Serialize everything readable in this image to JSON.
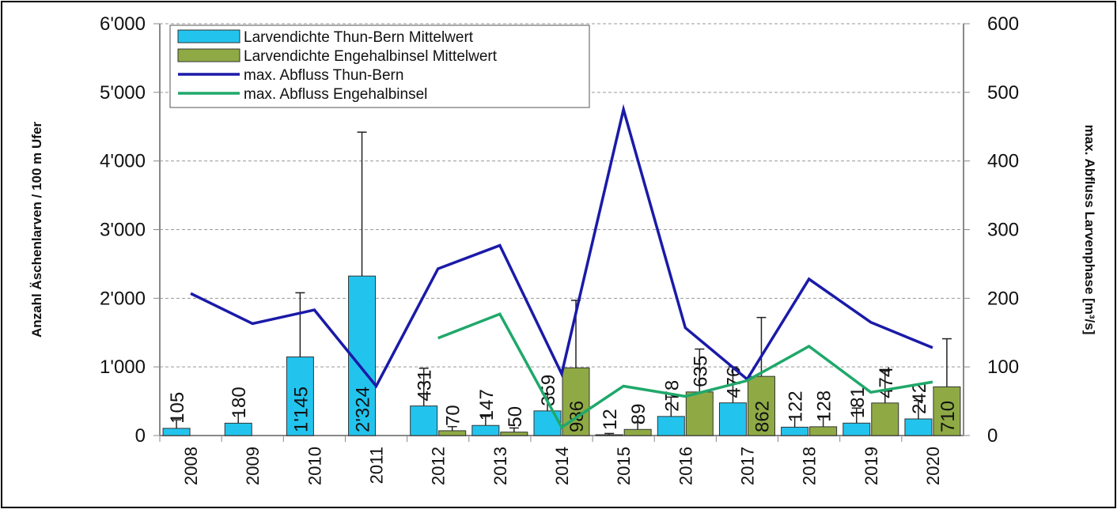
{
  "chart_data": {
    "type": "bar-line",
    "categories": [
      "2008",
      "2009",
      "2010",
      "2011",
      "2012",
      "2013",
      "2014",
      "2015",
      "2016",
      "2017",
      "2018",
      "2019",
      "2020"
    ],
    "ylabel": "Anzahl Äschenlarven / 100 m Ufer",
    "y2label": "max. Abfluss Larvenphase [m³/s]",
    "ylim": [
      0,
      6000
    ],
    "yticks": [
      0,
      {
        "value": 1000,
        "label": "1'000"
      },
      {
        "value": 2000,
        "label": "2'000"
      },
      {
        "value": 3000,
        "label": "3'000"
      },
      {
        "value": 4000,
        "label": "4'000"
      },
      {
        "value": 5000,
        "label": "5'000"
      },
      {
        "value": 6000,
        "label": "6'000"
      }
    ],
    "y2lim": [
      0,
      600
    ],
    "y2ticks": [
      0,
      100,
      200,
      300,
      400,
      500,
      600
    ],
    "grid": true,
    "legend": "upper left",
    "series": [
      {
        "name": "Larvendichte Thun-Bern Mittelwert",
        "type": "bar",
        "color": "#22c4ee",
        "values": [
          105,
          180,
          1145,
          2324,
          431,
          147,
          359,
          12,
          278,
          476,
          122,
          181,
          242
        ],
        "value_labels": [
          "105",
          "180",
          "1'145",
          "2'324",
          "431",
          "147",
          "359",
          "12",
          "278",
          "476",
          "122",
          "181",
          "242"
        ],
        "errors": [
          125,
          150,
          935,
          2096,
          549,
          133,
          241,
          18,
          282,
          524,
          148,
          219,
          268
        ]
      },
      {
        "name": "Larvendichte Engehalbinsel Mittelwert",
        "type": "bar",
        "color": "#8faa45",
        "values": [
          null,
          null,
          null,
          null,
          70,
          50,
          986,
          89,
          635,
          862,
          128,
          474,
          710
        ],
        "errors": [
          null,
          null,
          null,
          null,
          60,
          60,
          984,
          101,
          625,
          858,
          142,
          466,
          700
        ]
      },
      {
        "name": "max. Abfluss Thun-Bern",
        "type": "line",
        "axis": "y2",
        "color": "#1a1aa8",
        "values": [
          207,
          163,
          183,
          72,
          243,
          277,
          90,
          475,
          157,
          82,
          228,
          165,
          128
        ]
      },
      {
        "name": "max. Abfluss Engehalbinsel",
        "type": "line",
        "axis": "y2",
        "color": "#1fa86a",
        "values": [
          null,
          null,
          null,
          null,
          142,
          177,
          12,
          72,
          57,
          80,
          130,
          63,
          78
        ]
      }
    ]
  }
}
